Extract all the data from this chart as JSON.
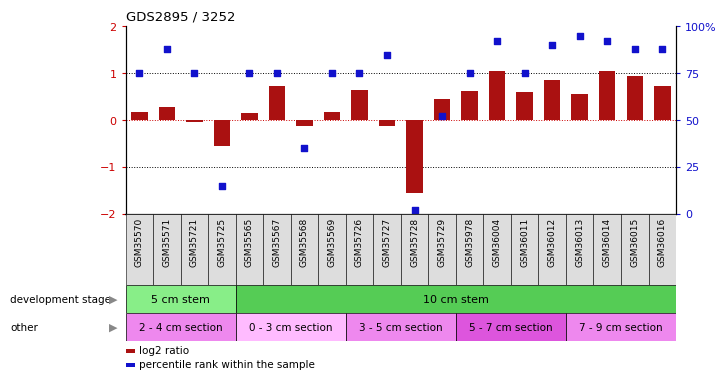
{
  "title": "GDS2895 / 3252",
  "samples": [
    "GSM35570",
    "GSM35571",
    "GSM35721",
    "GSM35725",
    "GSM35565",
    "GSM35567",
    "GSM35568",
    "GSM35569",
    "GSM35726",
    "GSM35727",
    "GSM35728",
    "GSM35729",
    "GSM35978",
    "GSM36004",
    "GSM36011",
    "GSM36012",
    "GSM36013",
    "GSM36014",
    "GSM36015",
    "GSM36016"
  ],
  "log2_ratio": [
    0.18,
    0.28,
    -0.05,
    -0.55,
    0.15,
    0.72,
    -0.12,
    0.18,
    0.65,
    -0.12,
    -1.55,
    0.45,
    0.62,
    1.05,
    0.6,
    0.85,
    0.55,
    1.05,
    0.95,
    0.72
  ],
  "percentile": [
    75,
    88,
    75,
    15,
    75,
    75,
    35,
    75,
    75,
    85,
    2,
    52,
    75,
    92,
    75,
    90,
    95,
    92,
    88,
    88
  ],
  "bar_color": "#aa1111",
  "dot_color": "#1111cc",
  "ylim": [
    -2.0,
    2.0
  ],
  "y2lim": [
    0,
    100
  ],
  "y_ticks": [
    -2,
    -1,
    0,
    1,
    2
  ],
  "y2_ticks": [
    0,
    25,
    50,
    75,
    100
  ],
  "dev_stage_groups": [
    {
      "label": "5 cm stem",
      "start": 0,
      "end": 4,
      "color": "#88ee88"
    },
    {
      "label": "10 cm stem",
      "start": 4,
      "end": 20,
      "color": "#55cc55"
    }
  ],
  "other_groups": [
    {
      "label": "2 - 4 cm section",
      "start": 0,
      "end": 4,
      "color": "#ee88ee"
    },
    {
      "label": "0 - 3 cm section",
      "start": 4,
      "end": 8,
      "color": "#ffbbff"
    },
    {
      "label": "3 - 5 cm section",
      "start": 8,
      "end": 12,
      "color": "#ee88ee"
    },
    {
      "label": "5 - 7 cm section",
      "start": 12,
      "end": 16,
      "color": "#dd55dd"
    },
    {
      "label": "7 - 9 cm section",
      "start": 16,
      "end": 20,
      "color": "#ee88ee"
    }
  ],
  "legend_items": [
    {
      "label": "log2 ratio",
      "color": "#aa1111"
    },
    {
      "label": "percentile rank within the sample",
      "color": "#1111cc"
    }
  ],
  "bg_color": "#ffffff"
}
